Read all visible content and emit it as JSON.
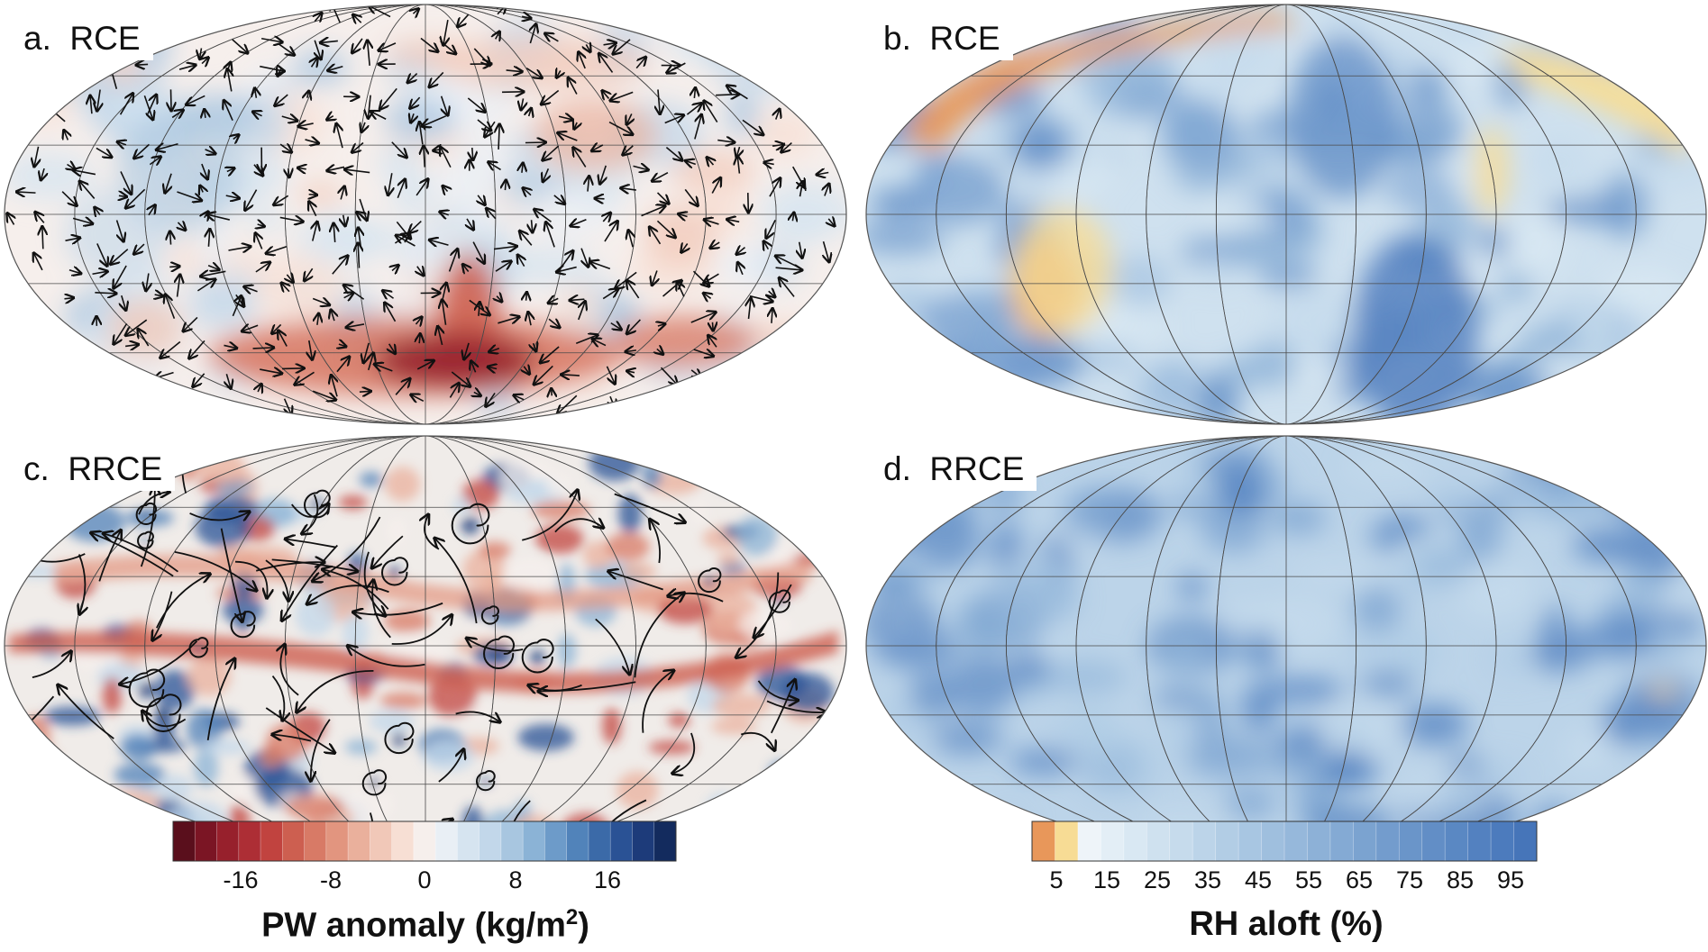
{
  "panels": {
    "a": {
      "label": "a.  RCE"
    },
    "b": {
      "label": "b.  RCE"
    },
    "c": {
      "label": "c.  RRCE"
    },
    "d": {
      "label": "d.  RRCE"
    }
  },
  "colorbar_pw": {
    "title_main": "PW anomaly (kg/m",
    "title_sup": "2",
    "title_end": ")",
    "ticks": [
      "-16",
      "-8",
      "0",
      "8",
      "16"
    ],
    "colors": [
      "#5a0f1c",
      "#7b1524",
      "#97202c",
      "#ad2e35",
      "#c1433f",
      "#cd5f50",
      "#d87a66",
      "#e2957f",
      "#eab09c",
      "#f1c8b8",
      "#f7dfd4",
      "#f6efec",
      "#e9eff5",
      "#d6e4f0",
      "#c2d7ea",
      "#a8c6e0",
      "#8bb3d6",
      "#6d9bc9",
      "#5183ba",
      "#3b6aa8",
      "#2a5295",
      "#1d3b7a",
      "#132b5e"
    ]
  },
  "colorbar_rh": {
    "title": "RH aloft (%)",
    "ticks": [
      "5",
      "15",
      "25",
      "35",
      "45",
      "55",
      "65",
      "75",
      "85",
      "95"
    ],
    "colors": [
      "#e8975a",
      "#f7dc95",
      "#eef4f9",
      "#e3eef6",
      "#d9e8f3",
      "#cfe1ef",
      "#c6dbec",
      "#bcd4e9",
      "#b2cde5",
      "#a8c6e2",
      "#9fbfde",
      "#96b8db",
      "#8db1d7",
      "#84aad4",
      "#7ba3d0",
      "#739ccd",
      "#6a95c9",
      "#628ec6",
      "#5a88c3",
      "#5381c0",
      "#4c7bbd",
      "#4675b9"
    ]
  },
  "colors": {
    "pw_background": "#f6efec",
    "rh_background": "#cfe1ef",
    "graticule": "#4a4a4a",
    "vector": "#111111"
  }
}
